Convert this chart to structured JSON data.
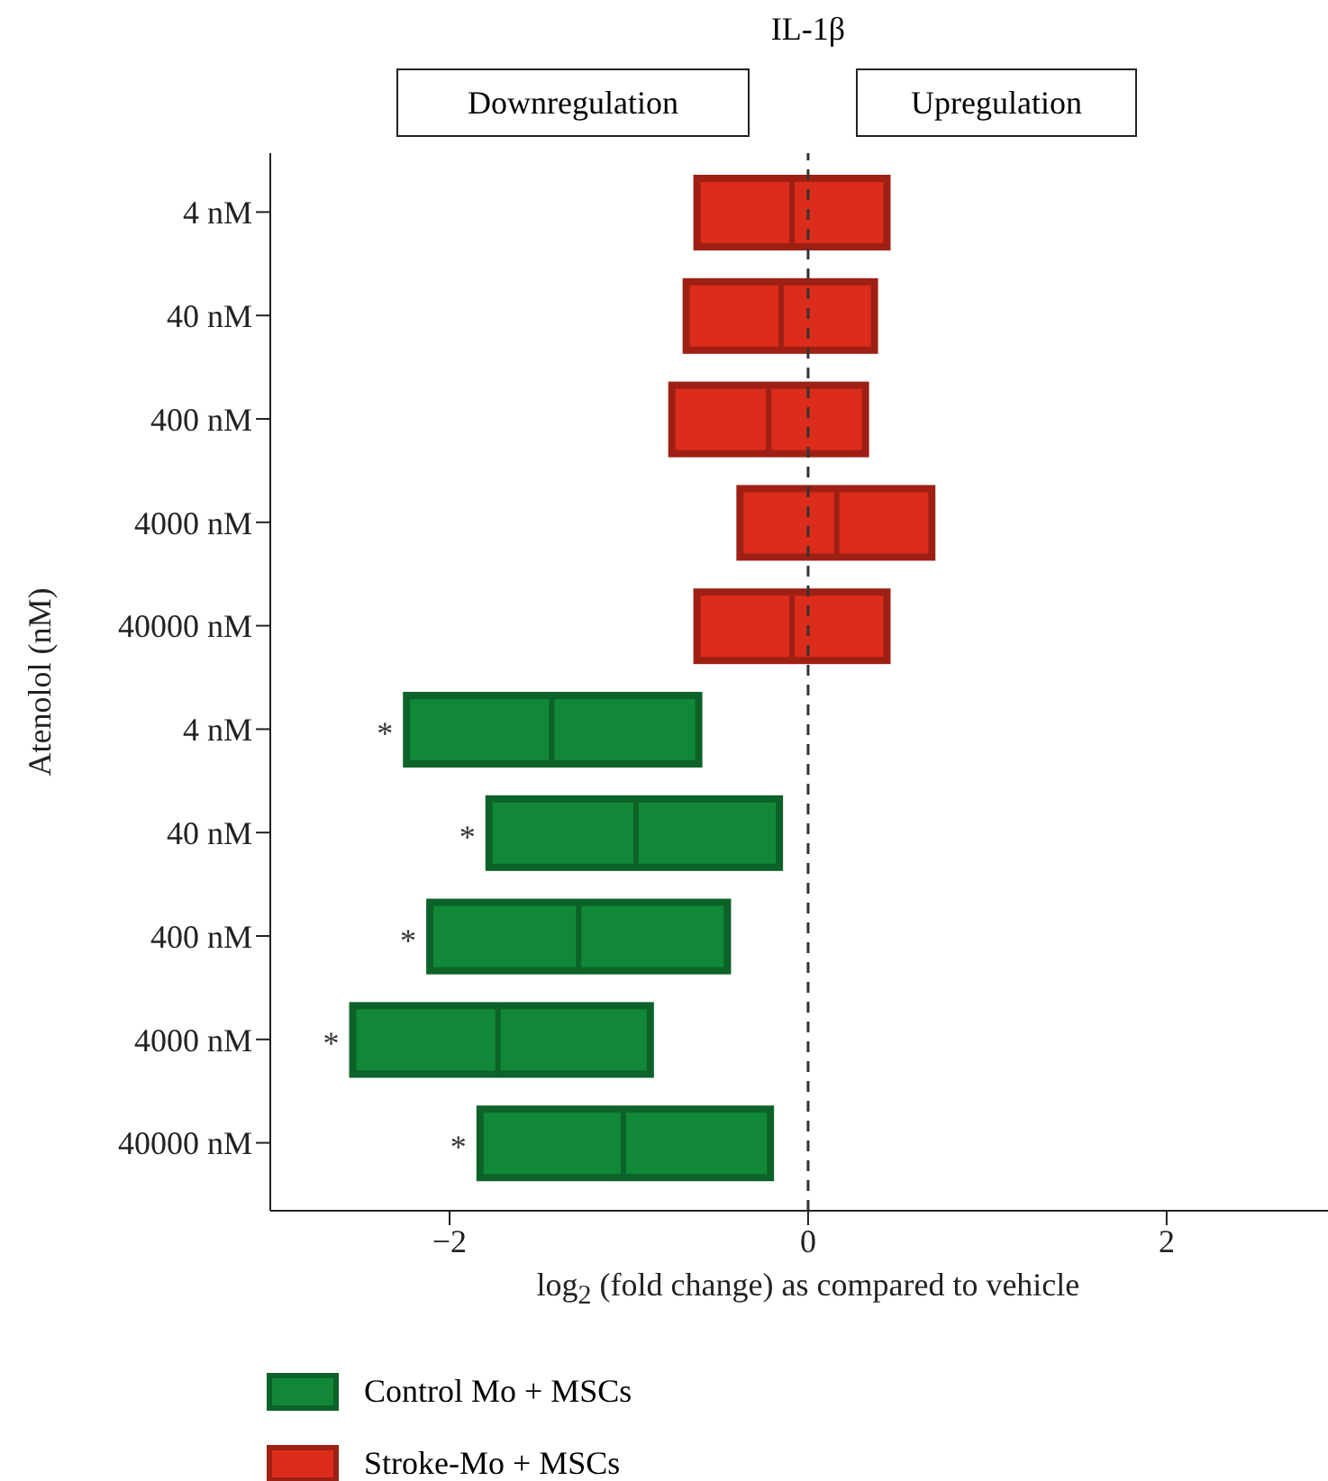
{
  "chart_data": {
    "type": "box",
    "orientation": "horizontal",
    "title": "IL-1β",
    "xlabel": "log$_{2}$ (fold change) as compared to vehicle",
    "ylabel": "Atenolol (nM)",
    "categories": [
      "4 nM",
      "40 nM",
      "400 nM",
      "4000 nM",
      "40000 nM",
      "4 nM",
      "40 nM",
      "400 nM",
      "4000 nM",
      "40000 nM"
    ],
    "series": [
      {
        "name": "Control Mo + MSCs",
        "color": "#118838",
        "boxes": [
          null,
          null,
          null,
          null,
          null,
          {
            "low": -2.24,
            "q1": -2.24,
            "median": -1.43,
            "q3": -0.61,
            "high": -0.61
          },
          {
            "low": -1.78,
            "q1": -1.78,
            "median": -0.96,
            "q3": -0.16,
            "high": -0.16
          },
          {
            "low": -2.11,
            "q1": -2.11,
            "median": -1.28,
            "q3": -0.45,
            "high": -0.45
          },
          {
            "low": -2.54,
            "q1": -2.54,
            "median": -1.73,
            "q3": -0.88,
            "high": -0.88
          },
          {
            "low": -1.83,
            "q1": -1.83,
            "median": -1.03,
            "q3": -0.21,
            "high": -0.21
          }
        ],
        "value_labels": [
          null,
          null,
          null,
          null,
          null,
          "*",
          "*",
          "*",
          "*",
          "*"
        ]
      },
      {
        "name": "Stroke-Mo + MSCs",
        "color": "#dc2c1c",
        "boxes": [
          {
            "low": -0.62,
            "q1": -0.62,
            "median": -0.09,
            "q3": 0.44,
            "high": 0.44
          },
          {
            "low": -0.68,
            "q1": -0.68,
            "median": -0.15,
            "q3": 0.37,
            "high": 0.37
          },
          {
            "low": -0.76,
            "q1": -0.76,
            "median": -0.22,
            "q3": 0.32,
            "high": 0.32
          },
          {
            "low": -0.38,
            "q1": -0.38,
            "median": 0.16,
            "q3": 0.69,
            "high": 0.69
          },
          {
            "low": -0.62,
            "q1": -0.62,
            "median": -0.09,
            "q3": 0.44,
            "high": 0.44
          },
          null,
          null,
          null,
          null,
          null
        ]
      }
    ],
    "xlim": [
      -3,
      2.9
    ],
    "xticks": [
      -2,
      0,
      2
    ],
    "ref_lines": [
      {
        "axis": "x",
        "value": 0,
        "color": "#333333",
        "line_style": "dashed"
      }
    ],
    "annotations": [
      "Downregulation",
      "Upregulation"
    ],
    "legend": "bottom",
    "grid": false
  }
}
